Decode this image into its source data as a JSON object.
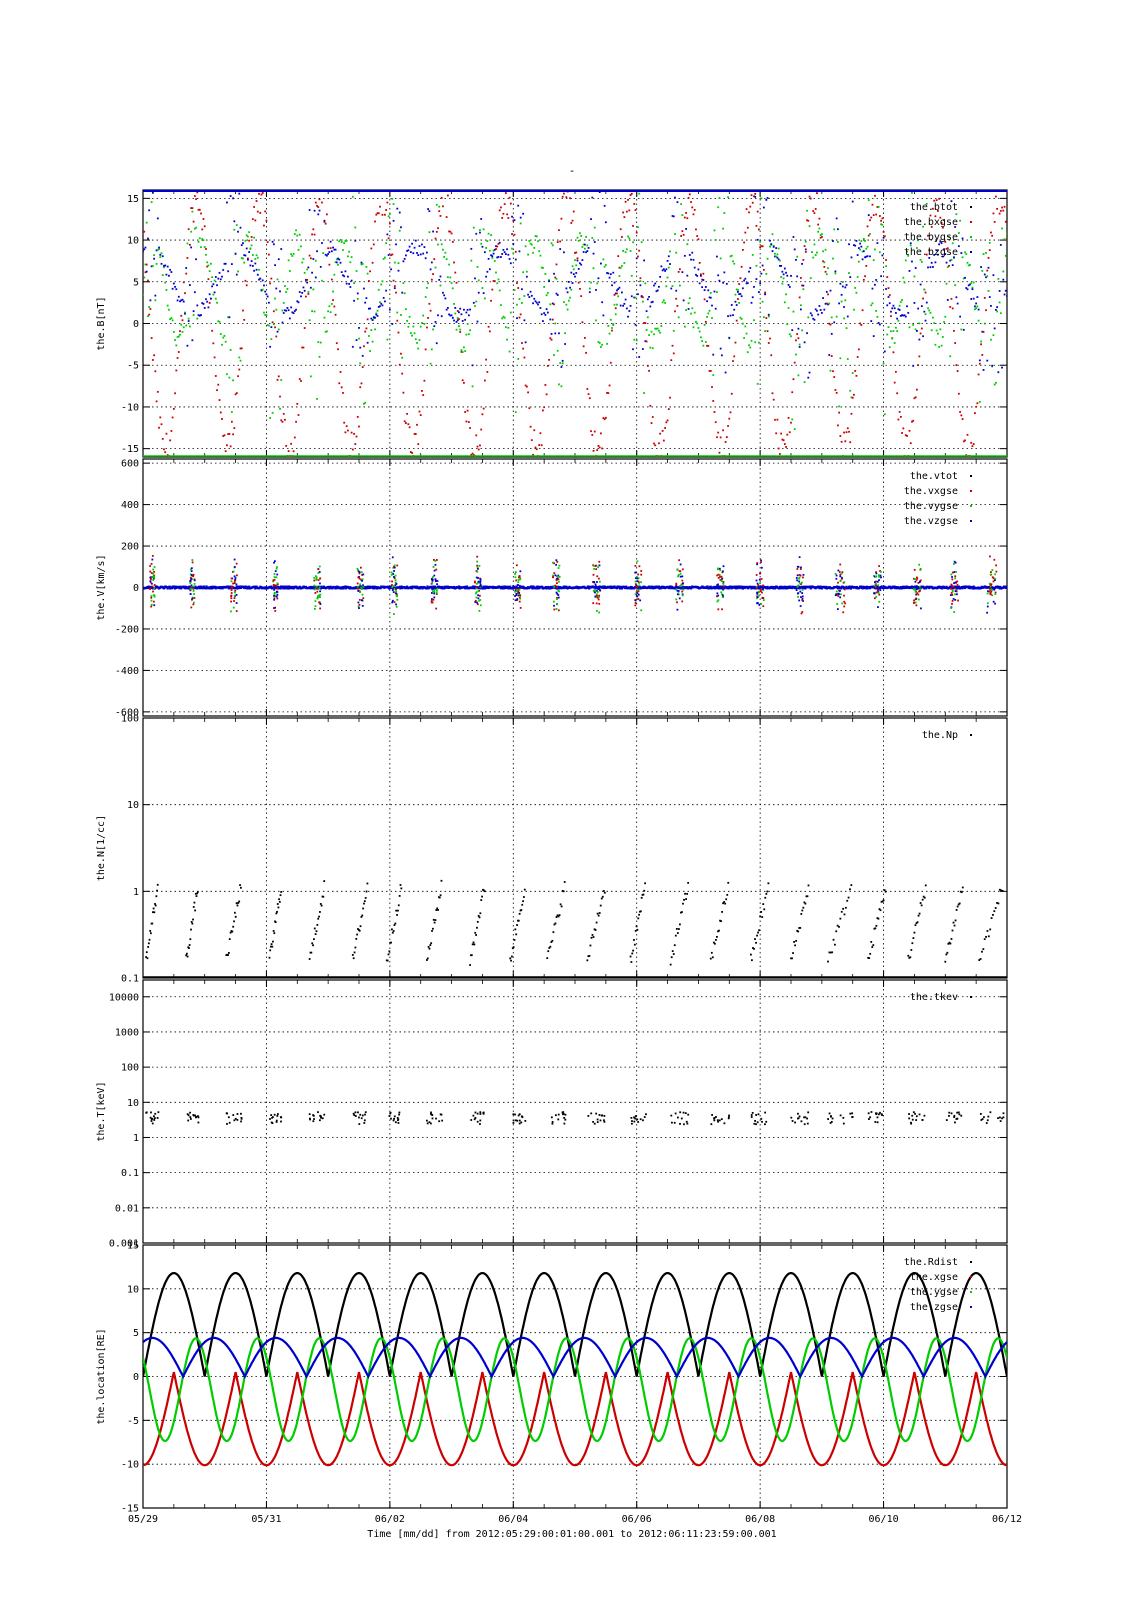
{
  "figure": {
    "title": "-",
    "footer": "Time [mm/dd]  from 2012:05:29:00:01:00.001  to  2012:06:11:23:59:00.001"
  },
  "chart_data": [
    {
      "type": "scatter",
      "ylabel": "the.B[nT]",
      "ylim": [
        -16,
        16
      ],
      "yticks": [
        15,
        10,
        5,
        0,
        -5,
        -10,
        -15
      ],
      "ytick_labels": [
        "15",
        "10",
        "5",
        "0",
        "-5",
        "-10",
        "-15"
      ],
      "legend": {
        "placement": "top-right",
        "entries": [
          "the.btot",
          "the.bxgse",
          "the.bygse",
          "the.bzgse"
        ]
      },
      "series": [
        {
          "name": "the.btot",
          "color": "#000000"
        },
        {
          "name": "the.bxgse",
          "color": "#cc0000"
        },
        {
          "name": "the.bygse",
          "color": "#00cc00"
        },
        {
          "name": "the.bzgse",
          "color": "#0000cc"
        }
      ]
    },
    {
      "type": "scatter",
      "ylabel": "the.V[km/s]",
      "ylim": [
        -620,
        620
      ],
      "yticks": [
        600,
        400,
        200,
        0,
        -200,
        -400,
        -600
      ],
      "ytick_labels": [
        "600",
        "400",
        "200",
        "0",
        "-200",
        "-400",
        "-600"
      ],
      "legend": {
        "placement": "top-right",
        "entries": [
          "the.vtot",
          "the.vxgse",
          "the.vygse",
          "the.vzgse"
        ]
      },
      "series": [
        {
          "name": "the.vtot",
          "color": "#000000"
        },
        {
          "name": "the.vxgse",
          "color": "#cc0000"
        },
        {
          "name": "the.vygse",
          "color": "#00cc00"
        },
        {
          "name": "the.vzgse",
          "color": "#0000cc"
        }
      ]
    },
    {
      "type": "scatter",
      "scale": "log",
      "ylabel": "the.N[1/cc]",
      "ylim": [
        0.1,
        100
      ],
      "yticks": [
        100,
        10,
        1,
        0.1
      ],
      "ytick_labels": [
        "100",
        "10",
        "1",
        "0.1"
      ],
      "legend": {
        "placement": "top-right",
        "entries": [
          "the.Np"
        ]
      },
      "series": [
        {
          "name": "the.Np",
          "color": "#000000"
        }
      ]
    },
    {
      "type": "scatter",
      "scale": "log",
      "ylabel": "the.T[keV]",
      "ylim": [
        0.001,
        30000
      ],
      "yticks": [
        10000,
        1000,
        100,
        10,
        1,
        0.1,
        0.01,
        0.001
      ],
      "ytick_labels": [
        "10000",
        "1000",
        "100",
        "10",
        "1",
        "0.1",
        "0.01",
        "0.001"
      ],
      "legend": {
        "placement": "top-right",
        "entries": [
          "the.tkev"
        ]
      },
      "series": [
        {
          "name": "the.tkev",
          "color": "#000000"
        }
      ]
    },
    {
      "type": "line",
      "ylabel": "the.location[RE]",
      "ylim": [
        -15,
        15
      ],
      "yticks": [
        15,
        10,
        5,
        0,
        -5,
        -10,
        -15
      ],
      "ytick_labels": [
        "15",
        "10",
        "5",
        "0",
        "-5",
        "-10",
        "-15"
      ],
      "orbit": {
        "period_days": 1.0,
        "rdist_max": 11.8,
        "xgse_min": -10.5,
        "zgse_amplitude": 4.4,
        "ygse_amplitude": 4.5
      },
      "legend": {
        "placement": "top-right",
        "entries": [
          "the.Rdist",
          "the.xgse",
          "the.ygse",
          "the.zgse"
        ]
      },
      "series": [
        {
          "name": "the.Rdist",
          "color": "#000000"
        },
        {
          "name": "the.xgse",
          "color": "#cc0000"
        },
        {
          "name": "the.ygse",
          "color": "#00cc00"
        },
        {
          "name": "the.zgse",
          "color": "#0000cc"
        }
      ]
    }
  ],
  "x_axis": {
    "range_days": [
      0,
      14
    ],
    "tick_days": [
      0,
      2,
      4,
      6,
      8,
      10,
      12,
      14
    ],
    "tick_labels": [
      "05/29",
      "05/31",
      "06/02",
      "06/04",
      "06/06",
      "06/08",
      "06/10",
      "06/12"
    ]
  },
  "activity": {
    "intervals": [
      [
        0.05,
        0.25
      ],
      [
        0.7,
        0.9
      ],
      [
        1.35,
        1.6
      ],
      [
        2.05,
        2.25
      ],
      [
        2.7,
        2.95
      ],
      [
        3.4,
        3.65
      ],
      [
        3.95,
        4.2
      ],
      [
        4.6,
        4.85
      ],
      [
        5.3,
        5.55
      ],
      [
        5.95,
        6.2
      ],
      [
        6.55,
        6.85
      ],
      [
        7.2,
        7.5
      ],
      [
        7.9,
        8.15
      ],
      [
        8.55,
        8.85
      ],
      [
        9.2,
        9.5
      ],
      [
        9.85,
        10.15
      ],
      [
        10.5,
        10.8
      ],
      [
        11.1,
        11.5
      ],
      [
        11.75,
        12.05
      ],
      [
        12.4,
        12.7
      ],
      [
        13.0,
        13.3
      ],
      [
        13.55,
        13.95
      ]
    ]
  }
}
